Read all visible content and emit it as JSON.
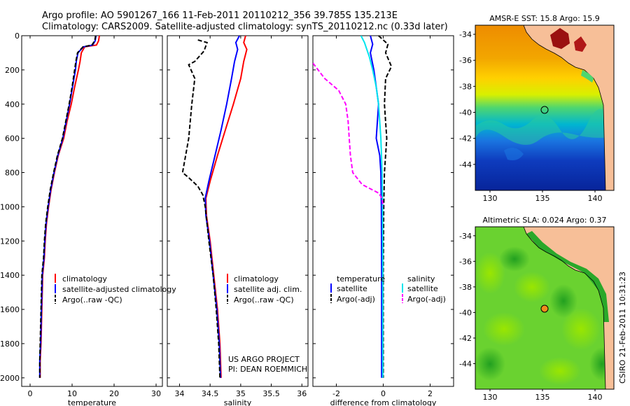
{
  "header": {
    "line1": "Argo profile: AO 5901267_166 11-Feb-2011 20110212_356 39.785S 135.213E",
    "line2": "Climatology: CARS2009. Satellite-adjusted climatology: synTS_20110212.nc (0.33d later)"
  },
  "side_label": "CSIRO 21-Feb-2011 10:31:23",
  "project": {
    "line1": "US ARGO PROJECT",
    "line2": "PI: DEAN ROEMMICH"
  },
  "colors": {
    "red": "#ff0000",
    "blue": "#0000ff",
    "black": "#000000",
    "cyan": "#00e5ee",
    "magenta": "#ff00ff",
    "land": "#f7bf98",
    "coast": "#000000"
  },
  "chart_data": [
    {
      "type": "line",
      "id": "temperature",
      "xlabel": "temperature",
      "ylabel": "",
      "xlim": [
        -2,
        31.5
      ],
      "ylim": [
        2050,
        0
      ],
      "xticks": [
        0,
        10,
        20,
        30
      ],
      "yticks": [
        0,
        200,
        400,
        600,
        800,
        1000,
        1200,
        1400,
        1600,
        1800,
        2000
      ],
      "legend": {
        "position": "lower-right",
        "entries": [
          "climatology",
          "satellite-adjusted climatology",
          "Argo(..raw -QC)"
        ]
      },
      "series": [
        {
          "name": "climatology",
          "color": "red",
          "dash": "solid",
          "points": [
            [
              16.5,
              0
            ],
            [
              16.3,
              30
            ],
            [
              15.8,
              55
            ],
            [
              13.0,
              65
            ],
            [
              12.2,
              100
            ],
            [
              11.9,
              150
            ],
            [
              11.5,
              200
            ],
            [
              10.6,
              300
            ],
            [
              9.8,
              400
            ],
            [
              8.8,
              500
            ],
            [
              8.0,
              600
            ],
            [
              6.7,
              700
            ],
            [
              5.8,
              800
            ],
            [
              5.0,
              900
            ],
            [
              4.4,
              1000
            ],
            [
              3.9,
              1100
            ],
            [
              3.6,
              1200
            ],
            [
              3.4,
              1300
            ],
            [
              3.0,
              1400
            ],
            [
              2.8,
              1600
            ],
            [
              2.6,
              1800
            ],
            [
              2.4,
              1900
            ],
            [
              2.4,
              2000
            ]
          ]
        },
        {
          "name": "satellite-adjusted climatology",
          "color": "blue",
          "dash": "solid",
          "points": [
            [
              15.7,
              0
            ],
            [
              15.5,
              30
            ],
            [
              14.9,
              55
            ],
            [
              12.7,
              65
            ],
            [
              11.4,
              100
            ],
            [
              11.0,
              150
            ],
            [
              10.8,
              200
            ],
            [
              10.1,
              300
            ],
            [
              9.4,
              400
            ],
            [
              8.6,
              500
            ],
            [
              7.8,
              600
            ],
            [
              6.6,
              700
            ],
            [
              5.7,
              800
            ],
            [
              4.9,
              900
            ],
            [
              4.3,
              1000
            ],
            [
              3.8,
              1100
            ],
            [
              3.5,
              1200
            ],
            [
              3.3,
              1300
            ],
            [
              2.9,
              1400
            ],
            [
              2.7,
              1600
            ],
            [
              2.5,
              1800
            ],
            [
              2.3,
              1900
            ],
            [
              2.3,
              2000
            ]
          ]
        },
        {
          "name": "Argo(..raw -QC)",
          "color": "black",
          "dash": "dashed",
          "points": [
            [
              15.6,
              0
            ],
            [
              15.4,
              30
            ],
            [
              14.7,
              55
            ],
            [
              12.6,
              65
            ],
            [
              11.3,
              100
            ],
            [
              10.9,
              150
            ],
            [
              10.6,
              200
            ],
            [
              10.0,
              300
            ],
            [
              9.3,
              400
            ],
            [
              8.5,
              500
            ],
            [
              7.7,
              600
            ],
            [
              6.5,
              700
            ],
            [
              5.6,
              800
            ],
            [
              4.8,
              900
            ],
            [
              4.2,
              1000
            ],
            [
              3.7,
              1100
            ],
            [
              3.4,
              1200
            ],
            [
              3.2,
              1300
            ],
            [
              2.8,
              1400
            ],
            [
              2.6,
              1600
            ],
            [
              2.4,
              1800
            ],
            [
              2.3,
              1900
            ],
            [
              2.3,
              2000
            ]
          ]
        }
      ]
    },
    {
      "type": "line",
      "id": "salinity",
      "xlabel": "salinity",
      "ylabel": "",
      "xlim": [
        33.8,
        36.1
      ],
      "ylim": [
        2050,
        0
      ],
      "xticks": [
        34,
        34.5,
        35,
        35.5,
        36
      ],
      "legend": {
        "position": "lower-right",
        "entries": [
          "climatology",
          "satellite adj. clim.",
          "Argo(..raw -QC)"
        ]
      },
      "series": [
        {
          "name": "climatology",
          "color": "red",
          "dash": "solid",
          "points": [
            [
              35.08,
              0
            ],
            [
              35.05,
              40
            ],
            [
              35.1,
              80
            ],
            [
              35.05,
              150
            ],
            [
              35.0,
              250
            ],
            [
              34.88,
              400
            ],
            [
              34.75,
              550
            ],
            [
              34.62,
              700
            ],
            [
              34.5,
              850
            ],
            [
              34.43,
              950
            ],
            [
              34.44,
              1050
            ],
            [
              34.5,
              1200
            ],
            [
              34.56,
              1400
            ],
            [
              34.62,
              1600
            ],
            [
              34.66,
              1800
            ],
            [
              34.68,
              2000
            ]
          ]
        },
        {
          "name": "satellite adj. clim.",
          "color": "blue",
          "dash": "solid",
          "points": [
            [
              34.98,
              0
            ],
            [
              34.92,
              40
            ],
            [
              34.95,
              80
            ],
            [
              34.9,
              150
            ],
            [
              34.85,
              250
            ],
            [
              34.77,
              400
            ],
            [
              34.68,
              550
            ],
            [
              34.58,
              700
            ],
            [
              34.48,
              850
            ],
            [
              34.42,
              950
            ],
            [
              34.43,
              1050
            ],
            [
              34.49,
              1200
            ],
            [
              34.55,
              1400
            ],
            [
              34.61,
              1600
            ],
            [
              34.65,
              1800
            ],
            [
              34.67,
              2000
            ]
          ]
        },
        {
          "name": "Argo(..raw -QC)",
          "color": "black",
          "dash": "dashed",
          "points": [
            [
              34.3,
              25
            ],
            [
              34.45,
              40
            ],
            [
              34.4,
              90
            ],
            [
              34.25,
              150
            ],
            [
              34.15,
              170
            ],
            [
              34.25,
              250
            ],
            [
              34.2,
              400
            ],
            [
              34.15,
              600
            ],
            [
              34.1,
              700
            ],
            [
              34.05,
              800
            ],
            [
              34.15,
              830
            ],
            [
              34.3,
              880
            ],
            [
              34.38,
              930
            ],
            [
              34.42,
              1000
            ],
            [
              34.48,
              1200
            ],
            [
              34.55,
              1400
            ],
            [
              34.6,
              1600
            ],
            [
              34.64,
              1800
            ],
            [
              34.66,
              2000
            ]
          ]
        }
      ]
    },
    {
      "type": "line",
      "id": "difference",
      "xlabel": "difference from climatology",
      "ylabel": "",
      "xlim": [
        -3.0,
        3.0
      ],
      "ylim": [
        2050,
        0
      ],
      "xticks": [
        -2,
        0,
        2
      ],
      "legend": {
        "position": "lower-center",
        "headers": [
          "temperature",
          "salinity"
        ],
        "entries": [
          "satellite",
          "Argo(-adj)",
          "satellite",
          "Argo(-adj)"
        ]
      },
      "series": [
        {
          "name": "temperature satellite",
          "color": "blue",
          "dash": "solid",
          "points": [
            [
              -0.55,
              0
            ],
            [
              -0.45,
              50
            ],
            [
              -0.55,
              100
            ],
            [
              -0.4,
              200
            ],
            [
              -0.3,
              300
            ],
            [
              -0.2,
              400
            ],
            [
              -0.3,
              600
            ],
            [
              -0.15,
              700
            ],
            [
              -0.1,
              800
            ],
            [
              -0.08,
              1000
            ],
            [
              -0.07,
              1400
            ],
            [
              -0.07,
              2000
            ]
          ]
        },
        {
          "name": "temperature Argo(-adj)",
          "color": "black",
          "dash": "dashed",
          "points": [
            [
              -0.2,
              0
            ],
            [
              0.2,
              50
            ],
            [
              0.1,
              100
            ],
            [
              0.35,
              180
            ],
            [
              0.1,
              250
            ],
            [
              0.05,
              400
            ],
            [
              0.15,
              600
            ],
            [
              0.05,
              800
            ],
            [
              0.02,
              1000
            ],
            [
              0.0,
              1400
            ],
            [
              0.0,
              2000
            ]
          ]
        },
        {
          "name": "salinity satellite",
          "color": "cyan",
          "dash": "solid",
          "points": [
            [
              -0.95,
              0
            ],
            [
              -0.8,
              40
            ],
            [
              -0.7,
              80
            ],
            [
              -0.6,
              120
            ],
            [
              -0.45,
              200
            ],
            [
              -0.3,
              300
            ],
            [
              -0.2,
              400
            ],
            [
              -0.1,
              600
            ],
            [
              -0.05,
              800
            ],
            [
              -0.03,
              1000
            ],
            [
              -0.02,
              1400
            ],
            [
              -0.02,
              2000
            ]
          ]
        },
        {
          "name": "salinity Argo(-adj)",
          "color": "magenta",
          "dash": "dashed",
          "points": [
            [
              -3.0,
              160
            ],
            [
              -2.5,
              250
            ],
            [
              -1.9,
              320
            ],
            [
              -1.6,
              400
            ],
            [
              -1.5,
              500
            ],
            [
              -1.45,
              600
            ],
            [
              -1.4,
              700
            ],
            [
              -1.3,
              800
            ],
            [
              -0.9,
              870
            ],
            [
              -0.2,
              920
            ],
            [
              -0.05,
              950
            ],
            [
              -0.01,
              1000
            ]
          ]
        }
      ]
    },
    {
      "type": "heatmap",
      "id": "sst_map",
      "title": "AMSR-E SST: 15.8 Argo: 15.9",
      "xlim": [
        128.6,
        141.8
      ],
      "ylim": [
        -46,
        -33.3
      ],
      "xticks": [
        130,
        135,
        140
      ],
      "yticks": [
        -34,
        -36,
        -38,
        -40,
        -42,
        -44
      ],
      "marker": {
        "lon": 135.213,
        "lat": -39.785,
        "color": "none"
      }
    },
    {
      "type": "heatmap",
      "id": "sla_map",
      "title": "Altimetric SLA: 0.024 Argo: 0.37",
      "xlim": [
        128.6,
        141.8
      ],
      "ylim": [
        -46,
        -33.3
      ],
      "xticks": [
        130,
        135,
        140
      ],
      "yticks": [
        -34,
        -36,
        -38,
        -40,
        -42,
        -44
      ],
      "marker": {
        "lon": 135.213,
        "lat": -39.785,
        "color": "orange"
      }
    }
  ]
}
